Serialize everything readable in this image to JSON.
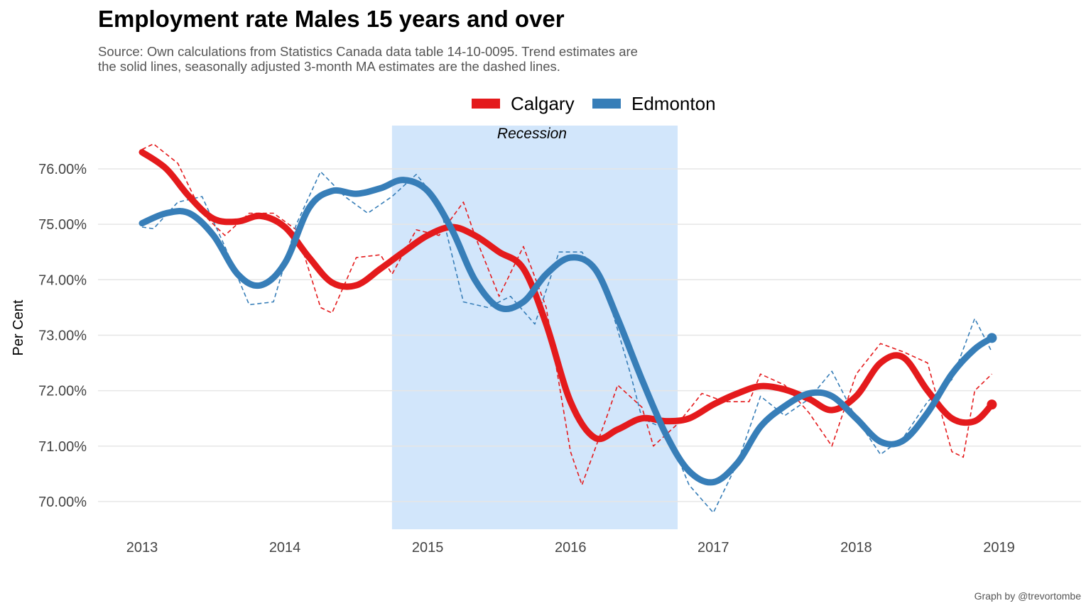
{
  "header": {
    "title": "Employment rate Males 15 years and over",
    "subtitle_line1": "Source: Own calculations from Statistics Canada data table 14-10-0095. Trend estimates are",
    "subtitle_line2": "the solid lines, seasonally adjusted 3-month MA estimates are the dashed lines."
  },
  "caption": "Graph by @trevortombe",
  "colors": {
    "calgary": "#e41a1c",
    "edmonton": "#377eb8",
    "recession": "#d2e6fb",
    "grid": "#e6e6e6"
  },
  "chart_data": {
    "type": "line",
    "title": "Employment rate Males 15 years and over",
    "ylabel": "Per Cent",
    "xlabel": "",
    "xlim": [
      2013.0,
      2019.5
    ],
    "ylim": [
      69.5,
      76.78
    ],
    "x_ticks": [
      2013,
      2014,
      2015,
      2016,
      2017,
      2018,
      2019
    ],
    "y_ticks": [
      70,
      71,
      72,
      73,
      74,
      75,
      76
    ],
    "y_tick_labels": [
      "70.00%",
      "71.00%",
      "72.00%",
      "73.00%",
      "74.00%",
      "75.00%",
      "76.00%"
    ],
    "grid": "horizontal",
    "legend_position": "top",
    "annotation": {
      "label": "Recession",
      "x_start": 2014.75,
      "x_end": 2016.75
    },
    "series": [
      {
        "name": "Calgary",
        "style": "trend",
        "points": [
          [
            2013.0,
            76.3
          ],
          [
            2013.17,
            76.0
          ],
          [
            2013.33,
            75.5
          ],
          [
            2013.5,
            75.1
          ],
          [
            2013.67,
            75.05
          ],
          [
            2013.83,
            75.15
          ],
          [
            2014.0,
            74.95
          ],
          [
            2014.17,
            74.4
          ],
          [
            2014.33,
            73.95
          ],
          [
            2014.5,
            73.9
          ],
          [
            2014.67,
            74.2
          ],
          [
            2014.83,
            74.5
          ],
          [
            2015.0,
            74.8
          ],
          [
            2015.17,
            74.95
          ],
          [
            2015.33,
            74.8
          ],
          [
            2015.5,
            74.5
          ],
          [
            2015.67,
            74.2
          ],
          [
            2015.83,
            73.2
          ],
          [
            2016.0,
            71.8
          ],
          [
            2016.17,
            71.15
          ],
          [
            2016.33,
            71.3
          ],
          [
            2016.5,
            71.5
          ],
          [
            2016.67,
            71.45
          ],
          [
            2016.83,
            71.5
          ],
          [
            2017.0,
            71.75
          ],
          [
            2017.17,
            71.95
          ],
          [
            2017.33,
            72.08
          ],
          [
            2017.5,
            72.02
          ],
          [
            2017.67,
            71.85
          ],
          [
            2017.83,
            71.65
          ],
          [
            2018.0,
            71.9
          ],
          [
            2018.17,
            72.5
          ],
          [
            2018.33,
            72.6
          ],
          [
            2018.5,
            72.0
          ],
          [
            2018.67,
            71.5
          ],
          [
            2018.83,
            71.45
          ],
          [
            2018.95,
            71.75
          ]
        ]
      },
      {
        "name": "Calgary",
        "style": "dashed",
        "points": [
          [
            2013.0,
            76.35
          ],
          [
            2013.08,
            76.45
          ],
          [
            2013.25,
            76.1
          ],
          [
            2013.42,
            75.2
          ],
          [
            2013.58,
            74.8
          ],
          [
            2013.75,
            75.2
          ],
          [
            2013.92,
            75.2
          ],
          [
            2014.08,
            74.9
          ],
          [
            2014.25,
            73.5
          ],
          [
            2014.33,
            73.4
          ],
          [
            2014.5,
            74.4
          ],
          [
            2014.67,
            74.45
          ],
          [
            2014.75,
            74.1
          ],
          [
            2014.92,
            74.9
          ],
          [
            2015.08,
            74.8
          ],
          [
            2015.25,
            75.4
          ],
          [
            2015.33,
            74.8
          ],
          [
            2015.5,
            73.7
          ],
          [
            2015.67,
            74.6
          ],
          [
            2015.83,
            73.5
          ],
          [
            2016.0,
            70.9
          ],
          [
            2016.08,
            70.3
          ],
          [
            2016.25,
            71.5
          ],
          [
            2016.33,
            72.1
          ],
          [
            2016.5,
            71.7
          ],
          [
            2016.58,
            71.0
          ],
          [
            2016.75,
            71.4
          ],
          [
            2016.92,
            71.95
          ],
          [
            2017.08,
            71.8
          ],
          [
            2017.25,
            71.8
          ],
          [
            2017.33,
            72.3
          ],
          [
            2017.5,
            72.1
          ],
          [
            2017.67,
            71.6
          ],
          [
            2017.83,
            71.0
          ],
          [
            2018.0,
            72.3
          ],
          [
            2018.17,
            72.85
          ],
          [
            2018.33,
            72.7
          ],
          [
            2018.5,
            72.5
          ],
          [
            2018.67,
            70.9
          ],
          [
            2018.75,
            70.8
          ],
          [
            2018.83,
            72.0
          ],
          [
            2018.95,
            72.3
          ]
        ]
      },
      {
        "name": "Edmonton",
        "style": "trend",
        "points": [
          [
            2013.0,
            75.02
          ],
          [
            2013.17,
            75.2
          ],
          [
            2013.33,
            75.2
          ],
          [
            2013.5,
            74.8
          ],
          [
            2013.67,
            74.1
          ],
          [
            2013.83,
            73.9
          ],
          [
            2014.0,
            74.3
          ],
          [
            2014.17,
            75.3
          ],
          [
            2014.33,
            75.6
          ],
          [
            2014.5,
            75.55
          ],
          [
            2014.67,
            75.65
          ],
          [
            2014.83,
            75.8
          ],
          [
            2015.0,
            75.6
          ],
          [
            2015.17,
            74.9
          ],
          [
            2015.33,
            74.0
          ],
          [
            2015.5,
            73.5
          ],
          [
            2015.67,
            73.6
          ],
          [
            2015.83,
            74.1
          ],
          [
            2016.0,
            74.4
          ],
          [
            2016.17,
            74.2
          ],
          [
            2016.33,
            73.3
          ],
          [
            2016.5,
            72.2
          ],
          [
            2016.67,
            71.2
          ],
          [
            2016.83,
            70.55
          ],
          [
            2017.0,
            70.35
          ],
          [
            2017.17,
            70.7
          ],
          [
            2017.33,
            71.35
          ],
          [
            2017.5,
            71.72
          ],
          [
            2017.67,
            71.95
          ],
          [
            2017.83,
            71.9
          ],
          [
            2018.0,
            71.5
          ],
          [
            2018.17,
            71.08
          ],
          [
            2018.33,
            71.1
          ],
          [
            2018.5,
            71.6
          ],
          [
            2018.67,
            72.3
          ],
          [
            2018.83,
            72.75
          ],
          [
            2018.95,
            72.95
          ]
        ]
      },
      {
        "name": "Edmonton",
        "style": "dashed",
        "points": [
          [
            2013.0,
            74.95
          ],
          [
            2013.08,
            74.92
          ],
          [
            2013.25,
            75.4
          ],
          [
            2013.42,
            75.5
          ],
          [
            2013.58,
            74.6
          ],
          [
            2013.75,
            73.55
          ],
          [
            2013.92,
            73.6
          ],
          [
            2014.08,
            75.0
          ],
          [
            2014.25,
            75.95
          ],
          [
            2014.42,
            75.5
          ],
          [
            2014.58,
            75.2
          ],
          [
            2014.75,
            75.5
          ],
          [
            2014.92,
            75.9
          ],
          [
            2015.08,
            75.4
          ],
          [
            2015.25,
            73.6
          ],
          [
            2015.42,
            73.5
          ],
          [
            2015.58,
            73.7
          ],
          [
            2015.75,
            73.2
          ],
          [
            2015.92,
            74.5
          ],
          [
            2016.08,
            74.5
          ],
          [
            2016.25,
            73.8
          ],
          [
            2016.42,
            72.3
          ],
          [
            2016.5,
            71.5
          ],
          [
            2016.67,
            71.3
          ],
          [
            2016.83,
            70.3
          ],
          [
            2017.0,
            69.8
          ],
          [
            2017.17,
            70.7
          ],
          [
            2017.33,
            71.9
          ],
          [
            2017.5,
            71.55
          ],
          [
            2017.67,
            71.85
          ],
          [
            2017.83,
            72.35
          ],
          [
            2018.0,
            71.5
          ],
          [
            2018.17,
            70.85
          ],
          [
            2018.33,
            71.15
          ],
          [
            2018.5,
            71.8
          ],
          [
            2018.67,
            72.2
          ],
          [
            2018.83,
            73.3
          ],
          [
            2018.95,
            72.7
          ]
        ]
      }
    ]
  }
}
